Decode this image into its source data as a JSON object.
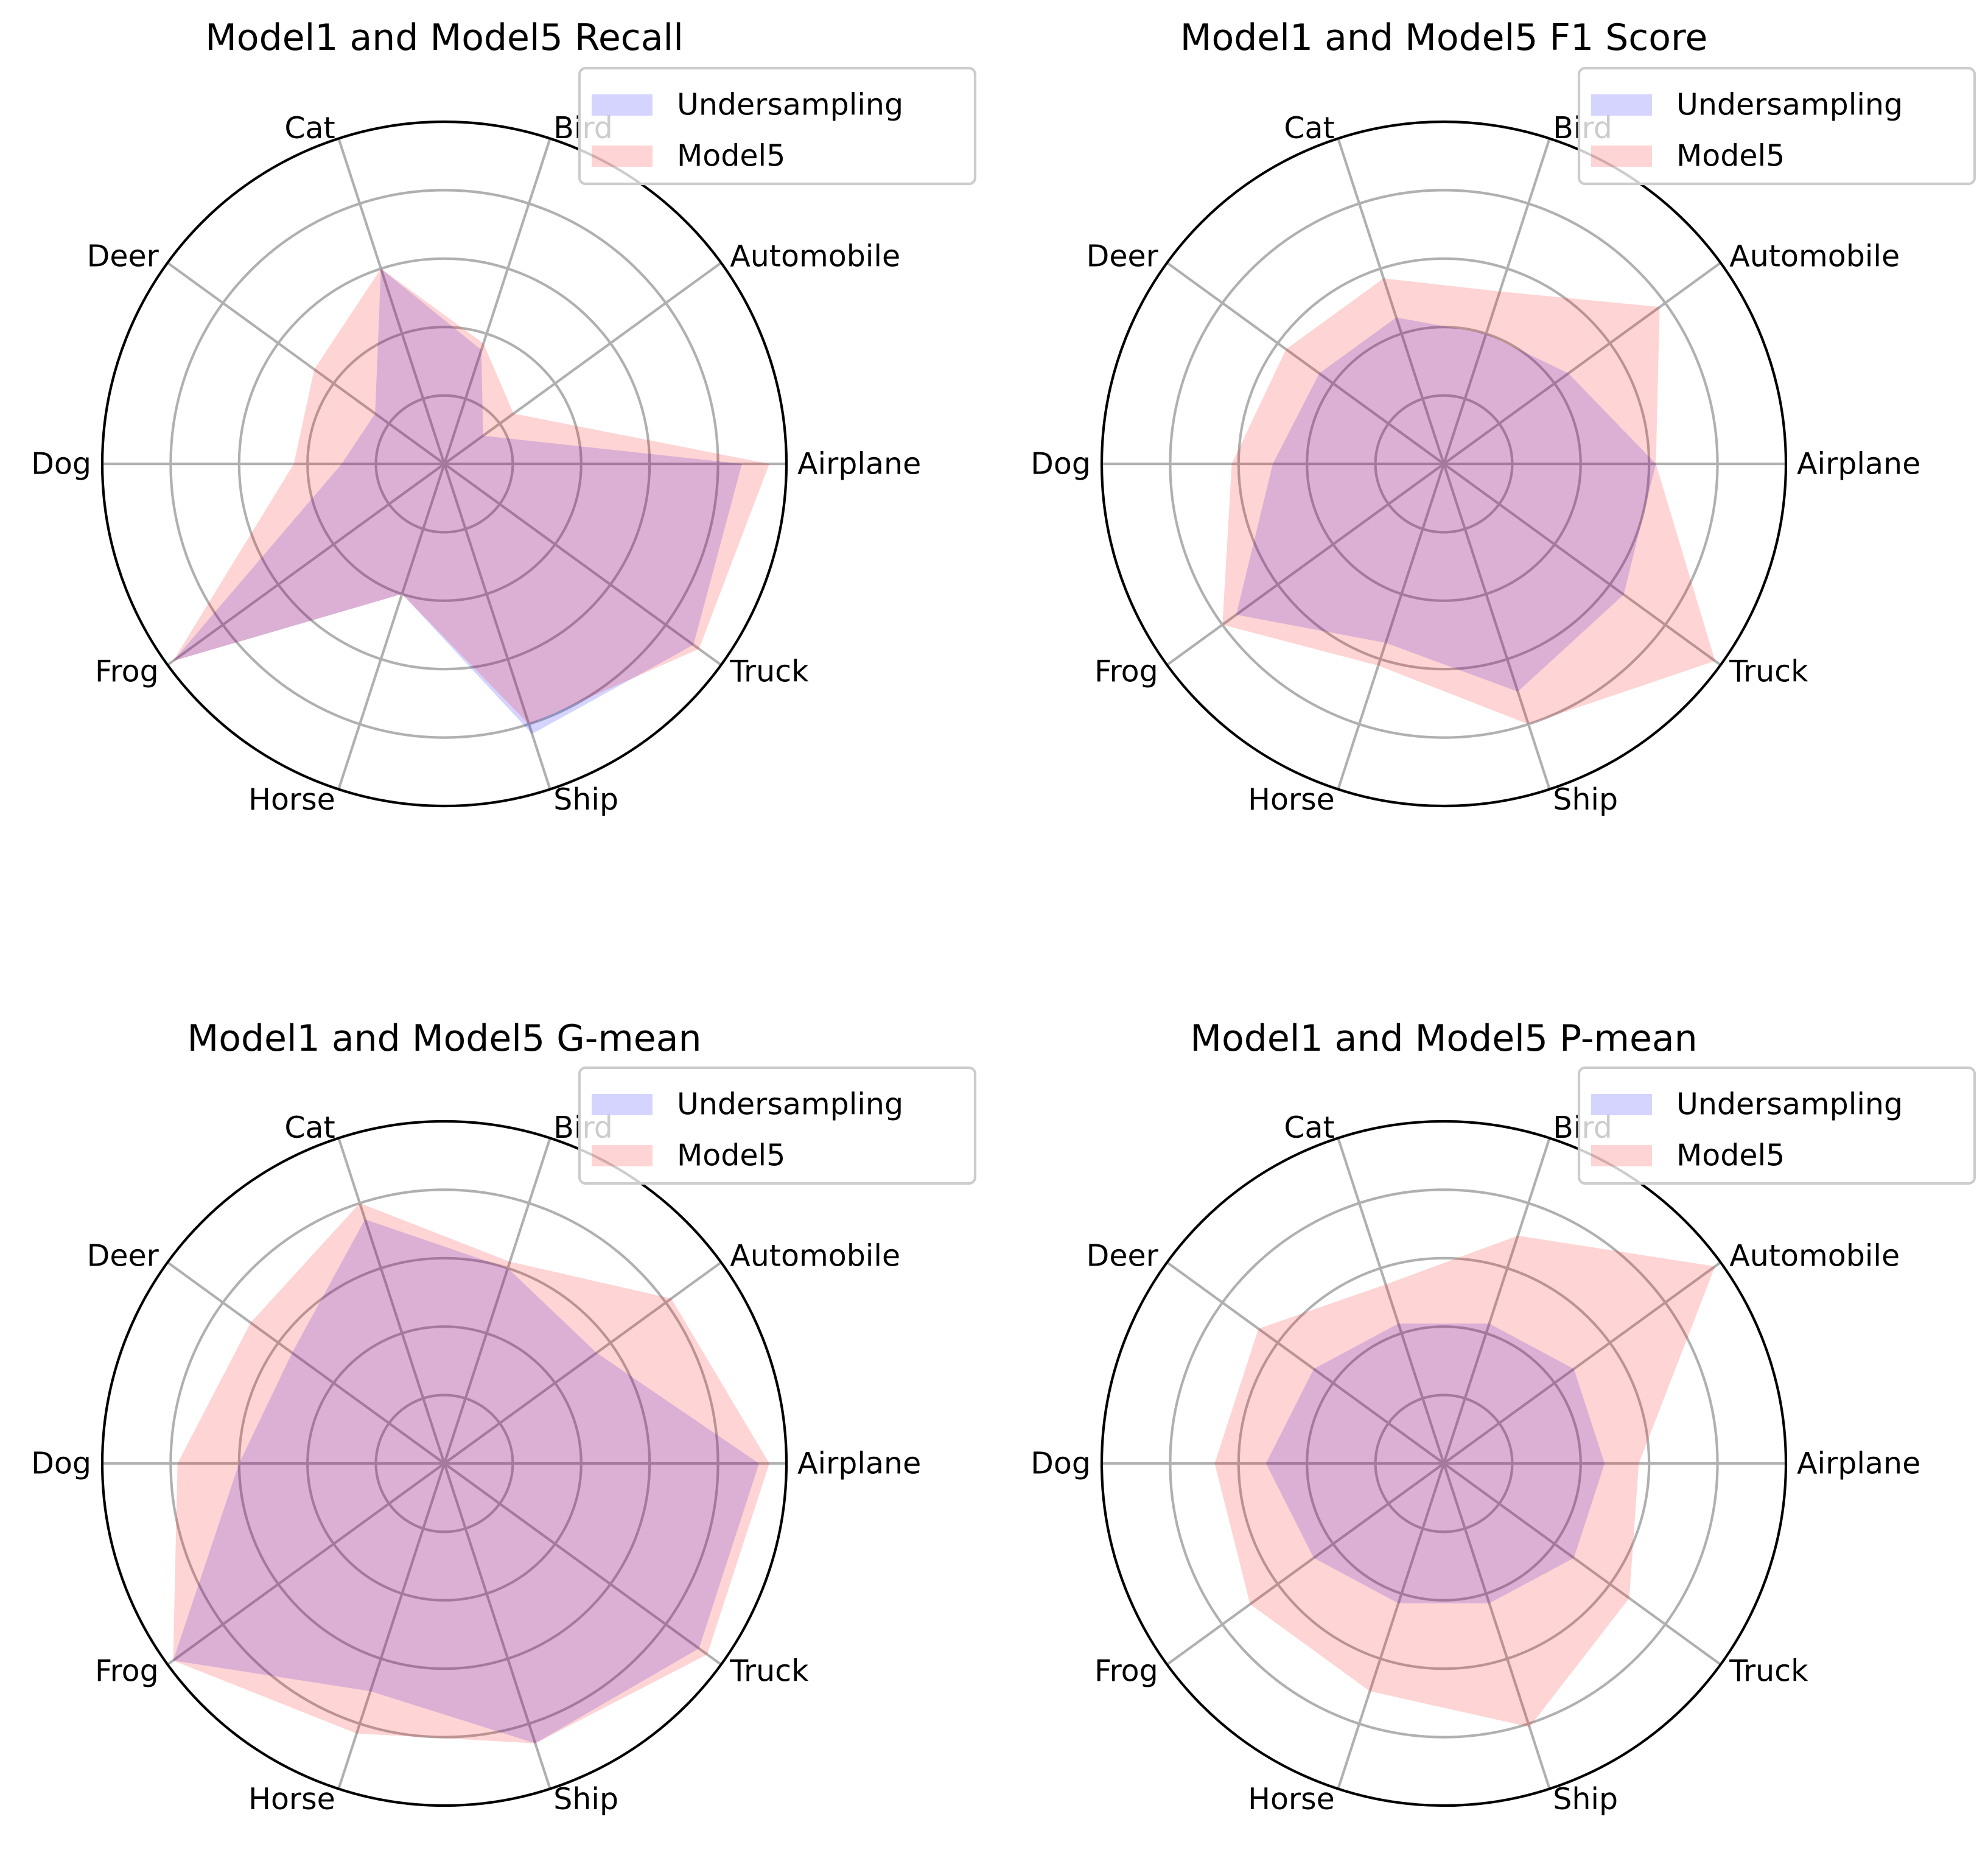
{
  "colors": {
    "series_a": "#0000ff",
    "series_b": "#ff0000",
    "series_alpha": 0.17,
    "grid": "#b0b0b0"
  },
  "chart_data": [
    {
      "type": "radar",
      "title": "Model1 and Model5 Recall",
      "categories": [
        "Airplane",
        "Automobile",
        "Bird",
        "Cat",
        "Deer",
        "Dog",
        "Frog",
        "Horse",
        "Ship",
        "Truck"
      ],
      "rlim": [
        0,
        1
      ],
      "grid_levels": [
        0.2,
        0.4,
        0.6,
        0.8,
        1.0
      ],
      "legend_position": "top-right",
      "series": [
        {
          "name": "Undersampling",
          "color": "#0000ff",
          "values": [
            0.87,
            0.14,
            0.35,
            0.6,
            0.25,
            0.3,
            0.98,
            0.4,
            0.83,
            0.9
          ]
        },
        {
          "name": "Model5",
          "color": "#ff0000",
          "values": [
            0.95,
            0.25,
            0.37,
            0.6,
            0.47,
            0.44,
            0.98,
            0.4,
            0.8,
            0.92
          ]
        }
      ]
    },
    {
      "type": "radar",
      "title": "Model1 and Model5 F1 Score",
      "categories": [
        "Airplane",
        "Automobile",
        "Bird",
        "Cat",
        "Deer",
        "Dog",
        "Frog",
        "Horse",
        "Ship",
        "Truck"
      ],
      "rlim": [
        0,
        1
      ],
      "grid_levels": [
        0.2,
        0.4,
        0.6,
        0.8,
        1.0
      ],
      "legend_position": "top-right",
      "series": [
        {
          "name": "Undersampling",
          "color": "#0000ff",
          "values": [
            0.62,
            0.45,
            0.4,
            0.45,
            0.45,
            0.5,
            0.75,
            0.55,
            0.7,
            0.65
          ]
        },
        {
          "name": "Model5",
          "color": "#ff0000",
          "values": [
            0.62,
            0.78,
            0.53,
            0.57,
            0.57,
            0.62,
            0.8,
            0.62,
            0.8,
            0.98
          ]
        }
      ]
    },
    {
      "type": "radar",
      "title": "Model1 and Model5 G-mean",
      "categories": [
        "Airplane",
        "Automobile",
        "Bird",
        "Cat",
        "Deer",
        "Dog",
        "Frog",
        "Horse",
        "Ship",
        "Truck"
      ],
      "rlim": [
        0,
        1
      ],
      "grid_levels": [
        0.2,
        0.4,
        0.6,
        0.8,
        1.0
      ],
      "legend_position": "top-right",
      "series": [
        {
          "name": "Undersampling",
          "color": "#0000ff",
          "values": [
            0.92,
            0.55,
            0.6,
            0.75,
            0.55,
            0.6,
            0.98,
            0.7,
            0.86,
            0.92
          ]
        },
        {
          "name": "Model5",
          "color": "#ff0000",
          "values": [
            0.95,
            0.82,
            0.62,
            0.8,
            0.7,
            0.78,
            0.98,
            0.83,
            0.86,
            0.95
          ]
        }
      ]
    },
    {
      "type": "radar",
      "title": "Model1 and Model5 P-mean",
      "categories": [
        "Airplane",
        "Automobile",
        "Bird",
        "Cat",
        "Deer",
        "Dog",
        "Frog",
        "Horse",
        "Ship",
        "Truck"
      ],
      "rlim": [
        0,
        1
      ],
      "grid_levels": [
        0.2,
        0.4,
        0.6,
        0.8,
        1.0
      ],
      "legend_position": "top-right",
      "series": [
        {
          "name": "Undersampling",
          "color": "#0000ff",
          "values": [
            0.47,
            0.47,
            0.43,
            0.43,
            0.47,
            0.52,
            0.47,
            0.43,
            0.43,
            0.47
          ]
        },
        {
          "name": "Model5",
          "color": "#ff0000",
          "values": [
            0.57,
            0.98,
            0.7,
            0.55,
            0.67,
            0.67,
            0.7,
            0.7,
            0.81,
            0.67
          ]
        }
      ]
    }
  ]
}
